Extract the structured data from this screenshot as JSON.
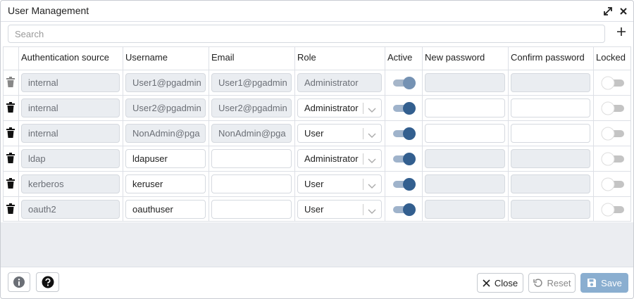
{
  "header": {
    "title": "User Management"
  },
  "search": {
    "placeholder": "Search"
  },
  "table": {
    "columns": [
      "Authentication source",
      "Username",
      "Email",
      "Role",
      "Active",
      "New password",
      "Confirm password",
      "Locked"
    ],
    "rows": [
      {
        "source": "internal",
        "username": "User1@pgadmin",
        "email": "User1@pgadmin",
        "role": "Administrator",
        "active": true,
        "locked": false,
        "deletable": false,
        "user_editable": false,
        "role_editable": false,
        "password_editable": false
      },
      {
        "source": "internal",
        "username": "User2@pgadmin",
        "email": "User2@pgadmin",
        "role": "Administrator",
        "active": true,
        "locked": false,
        "deletable": true,
        "user_editable": false,
        "role_editable": true,
        "password_editable": true
      },
      {
        "source": "internal",
        "username": "NonAdmin@pga",
        "email": "NonAdmin@pga",
        "role": "User",
        "active": true,
        "locked": false,
        "deletable": true,
        "user_editable": false,
        "role_editable": true,
        "password_editable": true
      },
      {
        "source": "ldap",
        "username": "ldapuser",
        "email": null,
        "role": "Administrator",
        "active": true,
        "locked": false,
        "deletable": true,
        "user_editable": true,
        "role_editable": true,
        "password_editable": false
      },
      {
        "source": "kerberos",
        "username": "keruser",
        "email": null,
        "role": "User",
        "active": true,
        "locked": false,
        "deletable": true,
        "user_editable": true,
        "role_editable": true,
        "password_editable": false
      },
      {
        "source": "oauth2",
        "username": "oauthuser",
        "email": null,
        "role": "User",
        "active": true,
        "locked": false,
        "deletable": true,
        "user_editable": true,
        "role_editable": true,
        "password_editable": false
      }
    ]
  },
  "footer": {
    "close": "Close",
    "reset": "Reset",
    "save": "Save"
  }
}
